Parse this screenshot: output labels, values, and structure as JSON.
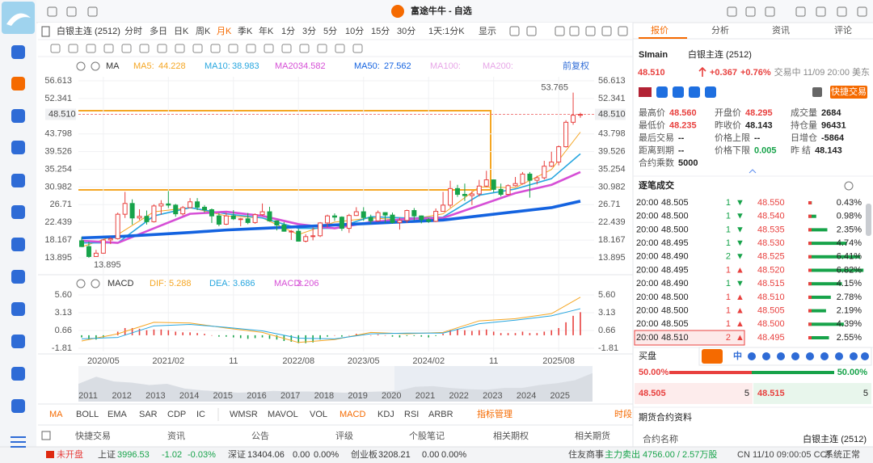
{
  "app": {
    "title": "富途牛牛 - 自选",
    "toolbar": {
      "symbol": "白银主连 (2512)",
      "periods": [
        "分时",
        "多日",
        "日K",
        "周K",
        "月K",
        "季K",
        "年K",
        "1分",
        "3分",
        "5分",
        "10分",
        "15分",
        "30分",
        "1天:1分K",
        "显示"
      ]
    },
    "legend": {
      "ma": "MA",
      "inactive": [
        "MA100:",
        "MA200:"
      ],
      "adjust": "前复权",
      "macd": "MACD"
    },
    "indicator_tabs": [
      "MA",
      "BOLL",
      "EMA",
      "SAR",
      "CDP",
      "IC",
      "WMSR",
      "MAVOL",
      "VOL",
      "MACD",
      "KDJ",
      "RSI",
      "ARBR"
    ],
    "indicator_manage": "指标管理",
    "session": "时段",
    "bottom_tabs": [
      "快捷交易",
      "资讯",
      "公告",
      "评级",
      "个股笔记",
      "相关期权",
      "相关期货"
    ],
    "status": {
      "closed": "未开盘",
      "sh_name": "上证",
      "sh_value": "3996.53",
      "sh_change": "-1.02",
      "sh_pct": "-0.03%",
      "sz_name": "深证",
      "sz_value": "13404.06",
      "sz_change": "0.00",
      "sz_pct": "0.00%",
      "cy_name": "创业板",
      "cy_value": "3208.21",
      "cy_change": "0.00",
      "cy_pct": "0.00%",
      "news": "住友商事",
      "flow": "主力卖出 4756.00 / 2.57万股",
      "clock": "CN 11/10 09:00:05 CCT",
      "system": "系统正常"
    }
  },
  "quote": {
    "tabs": [
      "报价",
      "分析",
      "资讯",
      "评论"
    ],
    "code": "SImain",
    "name": "白银主连 (2512)",
    "price": "48.510",
    "change": "+0.367",
    "pct": "+0.76%",
    "state": "交易中 11/09 20:00 美东",
    "quick_trade": "快捷交易",
    "fields": [
      [
        "最高价",
        "48.560"
      ],
      [
        "开盘价",
        "48.295"
      ],
      [
        "成交量",
        "2684"
      ],
      [
        "最低价",
        "48.235"
      ],
      [
        "昨收价",
        "48.143"
      ],
      [
        "持仓量",
        "96431"
      ],
      [
        "最后交易",
        "--"
      ],
      [
        "价格上限",
        "--"
      ],
      [
        "日增仓",
        "-5864"
      ],
      [
        "距离到期",
        "--"
      ],
      [
        "价格下限",
        "0.005"
      ],
      [
        "昨 结",
        "48.143"
      ],
      [
        "合约乘数",
        "5000"
      ]
    ]
  },
  "trades": {
    "title": "逐笔成交",
    "rows": [
      [
        "20:00",
        "48.505",
        "1",
        "▼"
      ],
      [
        "20:00",
        "48.500",
        "1",
        "▼"
      ],
      [
        "20:00",
        "48.500",
        "1",
        "▼"
      ],
      [
        "20:00",
        "48.495",
        "1",
        "▼"
      ],
      [
        "20:00",
        "48.490",
        "2",
        "▼"
      ],
      [
        "20:00",
        "48.495",
        "1",
        "▲"
      ],
      [
        "20:00",
        "48.490",
        "1",
        "▼"
      ],
      [
        "20:00",
        "48.500",
        "1",
        "▲"
      ],
      [
        "20:00",
        "48.500",
        "1",
        "▲"
      ],
      [
        "20:00",
        "48.505",
        "1",
        "▲"
      ],
      [
        "20:00",
        "48.510",
        "2",
        "▲"
      ]
    ],
    "dist": [
      {
        "price": "48.550",
        "pct": 0.43,
        "label": "0.43%"
      },
      {
        "price": "48.540",
        "pct": 0.98,
        "label": "0.98%"
      },
      {
        "price": "48.535",
        "pct": 2.35,
        "label": "2.35%"
      },
      {
        "price": "48.530",
        "pct": 4.74,
        "label": "4.74%"
      },
      {
        "price": "48.525",
        "pct": 6.41,
        "label": "6.41%"
      },
      {
        "price": "48.520",
        "pct": 6.82,
        "label": "6.82%"
      },
      {
        "price": "48.515",
        "pct": 4.15,
        "label": "4.15%"
      },
      {
        "price": "48.510",
        "pct": 2.78,
        "label": "2.78%"
      },
      {
        "price": "48.505",
        "pct": 2.19,
        "label": "2.19%"
      },
      {
        "price": "48.500",
        "pct": 4.39,
        "label": "4.39%"
      },
      {
        "price": "48.495",
        "pct": 2.55,
        "label": "2.55%"
      }
    ]
  },
  "book": {
    "title": "买盘",
    "bid_ratio": 50,
    "bid_label": "50.00%",
    "ask_ratio": 50,
    "ask_label": "50.00%",
    "bid": "48.505",
    "bid_size": "5",
    "ask": "48.515",
    "ask_size": "5"
  },
  "ime": {
    "label": "中"
  },
  "contract": {
    "title": "期货合约资料",
    "name_label": "合约名称",
    "name_value": "白银主连 (2512)"
  },
  "chart_data": {
    "type": "candlestick",
    "candles": [
      [
        18.0,
        16.6,
        18.9,
        16.5
      ],
      [
        16.6,
        14.2,
        17.8,
        13.895
      ],
      [
        14.2,
        15.0,
        15.8,
        14.1
      ],
      [
        15.0,
        18.2,
        18.4,
        14.9
      ],
      [
        18.2,
        18.5,
        18.9,
        17.2
      ],
      [
        18.5,
        24.4,
        24.8,
        18.3
      ],
      [
        24.4,
        27.0,
        29.8,
        23.5
      ],
      [
        27.0,
        23.5,
        28.0,
        21.9
      ],
      [
        23.5,
        23.9,
        25.6,
        23.0
      ],
      [
        23.9,
        22.6,
        25.3,
        21.9
      ],
      [
        22.6,
        26.4,
        26.8,
        22.4
      ],
      [
        26.4,
        26.9,
        27.8,
        24.3
      ],
      [
        26.9,
        26.6,
        30.0,
        25.9
      ],
      [
        26.6,
        24.5,
        26.9,
        23.8
      ],
      [
        24.5,
        26.0,
        26.4,
        24.1
      ],
      [
        26.0,
        27.4,
        28.3,
        25.9
      ],
      [
        27.4,
        26.1,
        28.3,
        25.4
      ],
      [
        26.1,
        25.5,
        26.6,
        24.8
      ],
      [
        25.5,
        24.0,
        25.8,
        22.3
      ],
      [
        24.0,
        22.0,
        24.7,
        21.5
      ],
      [
        22.0,
        24.0,
        24.8,
        21.8
      ],
      [
        24.0,
        23.3,
        25.4,
        23.0
      ],
      [
        23.3,
        23.3,
        23.5,
        21.5
      ],
      [
        23.3,
        22.4,
        24.7,
        22.0
      ],
      [
        22.4,
        24.3,
        24.6,
        22.1
      ],
      [
        24.3,
        25.0,
        27.0,
        24.0
      ],
      [
        25.0,
        22.8,
        26.2,
        22.6
      ],
      [
        22.8,
        21.8,
        22.9,
        20.5
      ],
      [
        21.8,
        20.3,
        22.5,
        20.2
      ],
      [
        20.3,
        20.3,
        20.6,
        18.2
      ],
      [
        20.3,
        17.9,
        20.9,
        17.8
      ],
      [
        17.9,
        19.0,
        19.6,
        17.6
      ],
      [
        19.0,
        19.2,
        21.2,
        18.1
      ],
      [
        19.2,
        22.3,
        22.5,
        18.9
      ],
      [
        22.3,
        24.0,
        24.3,
        21.2
      ],
      [
        24.0,
        23.7,
        24.6,
        22.8
      ],
      [
        23.7,
        21.0,
        23.9,
        20.4
      ],
      [
        21.0,
        24.1,
        24.5,
        19.9
      ],
      [
        24.1,
        25.0,
        26.1,
        24.0
      ],
      [
        25.0,
        23.6,
        26.1,
        22.8
      ],
      [
        23.6,
        22.8,
        24.3,
        22.1
      ],
      [
        22.8,
        24.8,
        25.3,
        22.6
      ],
      [
        24.8,
        24.2,
        24.9,
        22.3
      ],
      [
        24.2,
        22.4,
        24.8,
        22.1
      ],
      [
        22.4,
        22.9,
        23.6,
        20.7
      ],
      [
        22.9,
        25.3,
        25.5,
        22.3
      ],
      [
        25.3,
        24.0,
        25.9,
        22.9
      ],
      [
        24.0,
        23.1,
        24.1,
        22.2
      ],
      [
        23.1,
        22.7,
        23.5,
        22.3
      ],
      [
        22.7,
        25.1,
        25.8,
        22.5
      ],
      [
        25.1,
        26.6,
        29.8,
        25.0
      ],
      [
        26.6,
        30.6,
        32.5,
        26.0
      ],
      [
        30.6,
        29.2,
        31.5,
        28.6
      ],
      [
        29.2,
        28.9,
        31.8,
        27.6
      ],
      [
        28.9,
        29.3,
        30.0,
        26.6
      ],
      [
        29.3,
        31.2,
        32.7,
        28.7
      ],
      [
        31.2,
        32.7,
        34.9,
        31.0
      ],
      [
        32.7,
        30.4,
        32.8,
        29.7
      ],
      [
        30.4,
        29.2,
        31.8,
        28.7
      ],
      [
        29.2,
        31.3,
        31.6,
        29.0
      ],
      [
        31.3,
        31.8,
        33.4,
        31.1
      ],
      [
        31.8,
        34.1,
        34.6,
        31.6
      ],
      [
        34.1,
        32.6,
        34.6,
        28.4
      ],
      [
        32.6,
        33.2,
        33.7,
        31.6
      ],
      [
        33.2,
        36.0,
        37.3,
        32.8
      ],
      [
        36.0,
        37.0,
        39.5,
        35.8
      ],
      [
        37.0,
        40.7,
        41.0,
        36.2
      ],
      [
        40.7,
        46.6,
        47.1,
        40.5
      ],
      [
        46.6,
        48.3,
        53.765,
        46.0
      ],
      [
        48.3,
        48.51,
        48.9,
        47.7
      ]
    ],
    "ylim": [
      11.75,
      57.59
    ],
    "yticks": [
      56.613,
      52.341,
      43.798,
      39.526,
      35.254,
      30.982,
      26.71,
      22.439,
      18.167,
      13.895
    ],
    "xlim": [
      0,
      69
    ],
    "xticks": [
      {
        "value": 3,
        "label": "2020/05"
      },
      {
        "value": 12,
        "label": "2021/02"
      },
      {
        "value": 21,
        "label": "11"
      },
      {
        "value": 30,
        "label": "2022/08"
      },
      {
        "value": 39,
        "label": "2023/05"
      },
      {
        "value": 48,
        "label": "2024/02"
      },
      {
        "value": 57,
        "label": "11"
      },
      {
        "value": 66,
        "label": "2025/08"
      }
    ],
    "current_price": {
      "value": 48.51,
      "label": "48.510"
    },
    "high_label": 53.765,
    "low_label": 13.895,
    "ma_x": [
      0,
      5,
      10,
      15,
      20,
      25,
      30,
      35,
      40,
      45,
      50,
      55,
      60,
      65,
      69
    ],
    "series": [
      {
        "name": "MA5:",
        "color": "#f5a623",
        "values": [
          16.5,
          19.5,
          25.0,
          26.0,
          24.0,
          23.5,
          19.5,
          22.5,
          23.5,
          23.0,
          24.5,
          31.0,
          30.8,
          35.2,
          44.228
        ]
      },
      {
        "name": "MA10:",
        "color": "#27a6df",
        "values": [
          17.5,
          17.5,
          24.0,
          26.0,
          24.5,
          23.5,
          21.0,
          21.0,
          23.8,
          23.5,
          23.7,
          29.0,
          30.5,
          33.0,
          38.983
        ]
      },
      {
        "name": "MA20:",
        "color": "#d64fd6",
        "values": [
          18.0,
          17.5,
          21.0,
          24.5,
          25.0,
          24.0,
          22.0,
          21.0,
          22.5,
          23.3,
          23.5,
          26.5,
          29.5,
          31.5,
          34.582
        ]
      },
      {
        "name": "MA50:",
        "color": "#1463e0",
        "values": [
          18.7,
          19.0,
          19.5,
          20.0,
          20.6,
          21.0,
          21.4,
          21.8,
          22.2,
          22.6,
          23.0,
          24.0,
          25.0,
          26.0,
          27.562
        ]
      }
    ],
    "macd": {
      "ylim": [
        -2.82,
        6.39
      ],
      "yticks": [
        {
          "value": 5.6,
          "label": "5.60"
        },
        3.13,
        0.66,
        -1.81
      ],
      "hist_name": "MACD:",
      "hist": [
        -0.3,
        -0.6,
        -0.6,
        -0.3,
        0.0,
        0.5,
        1.0,
        1.0,
        0.9,
        0.7,
        0.8,
        0.8,
        0.7,
        0.5,
        0.4,
        0.4,
        0.3,
        0.2,
        0.0,
        -0.2,
        -0.2,
        -0.3,
        -0.4,
        -0.5,
        -0.4,
        -0.3,
        -0.5,
        -0.6,
        -0.8,
        -0.9,
        -1.1,
        -1.1,
        -1.0,
        -0.6,
        -0.2,
        0.0,
        -0.2,
        0.0,
        0.2,
        0.1,
        0.0,
        0.1,
        0.0,
        -0.2,
        -0.3,
        -0.1,
        -0.1,
        -0.2,
        -0.3,
        -0.1,
        0.2,
        0.7,
        0.8,
        0.7,
        0.6,
        0.7,
        0.8,
        0.5,
        0.3,
        0.3,
        0.3,
        0.5,
        0.3,
        0.3,
        0.5,
        0.7,
        1.0,
        1.8,
        2.7,
        3.206
      ],
      "lines": [
        {
          "name": "DIF:",
          "color": "#f5a623",
          "values": [
            -0.8,
            0.2,
            1.8,
            1.7,
            1.0,
            0.4,
            -1.0,
            -0.6,
            0.4,
            0.2,
            0.4,
            2.0,
            2.3,
            3.0,
            5.288
          ]
        },
        {
          "name": "DEA:",
          "color": "#27a6df",
          "values": [
            -0.5,
            -0.3,
            1.3,
            1.5,
            1.1,
            0.6,
            -0.4,
            -0.5,
            0.2,
            0.3,
            0.3,
            1.6,
            2.1,
            2.7,
            3.686
          ]
        }
      ]
    },
    "overview": {
      "ylim": [
        0,
        60
      ],
      "values": [
        30,
        42,
        34,
        32,
        28,
        30,
        22,
        19,
        17,
        15,
        16,
        18,
        17,
        17,
        16,
        15,
        16,
        17,
        18,
        25,
        26,
        23,
        21,
        20,
        23,
        23,
        28,
        31,
        36,
        48
      ],
      "years": [
        "2011",
        "2012",
        "2013",
        "2014",
        "2015",
        "2016",
        "2017",
        "2018",
        "2019",
        "2020",
        "2021",
        "2022",
        "2023",
        "2024",
        "2025"
      ]
    }
  }
}
